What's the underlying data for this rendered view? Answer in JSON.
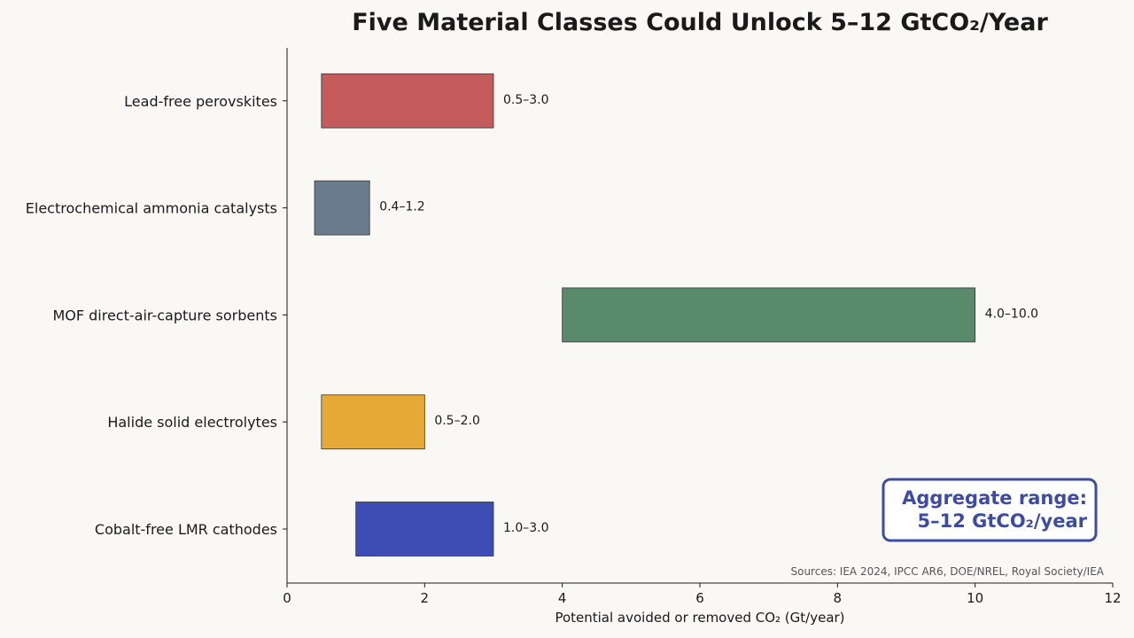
{
  "chart_data": {
    "type": "bar",
    "orientation": "horizontal",
    "title": "Five Material Classes Could Unlock 5–12 GtCO₂/Year",
    "xlabel": "Potential avoided or removed CO₂ (Gt/year)",
    "ylabel": "",
    "xlim": [
      0,
      12
    ],
    "xticks": [
      0,
      2,
      4,
      6,
      8,
      10,
      12
    ],
    "grid": false,
    "categories": [
      "Lead-free perovskites",
      "Electrochemical ammonia catalysts",
      "MOF direct-air-capture sorbents",
      "Halide solid electrolytes",
      "Cobalt-free LMR cathodes"
    ],
    "ranges": [
      {
        "low": 0.5,
        "high": 3.0,
        "label": "0.5–3.0",
        "color": "#c65b5b"
      },
      {
        "low": 0.4,
        "high": 1.2,
        "label": "0.4–1.2",
        "color": "#6b7b8e"
      },
      {
        "low": 4.0,
        "high": 10.0,
        "label": "4.0–10.0",
        "color": "#5a8a6c"
      },
      {
        "low": 0.5,
        "high": 2.0,
        "label": "0.5–2.0",
        "color": "#e7a935"
      },
      {
        "low": 1.0,
        "high": 3.0,
        "label": "1.0–3.0",
        "color": "#3d4db3"
      }
    ],
    "annotation": {
      "lines": [
        "Aggregate range:",
        "5–12 GtCO₂/year"
      ],
      "color": "#3d4ba3"
    },
    "source_note": "Sources: IEA 2024, IPCC AR6, DOE/NREL, Royal Society/IEA"
  }
}
